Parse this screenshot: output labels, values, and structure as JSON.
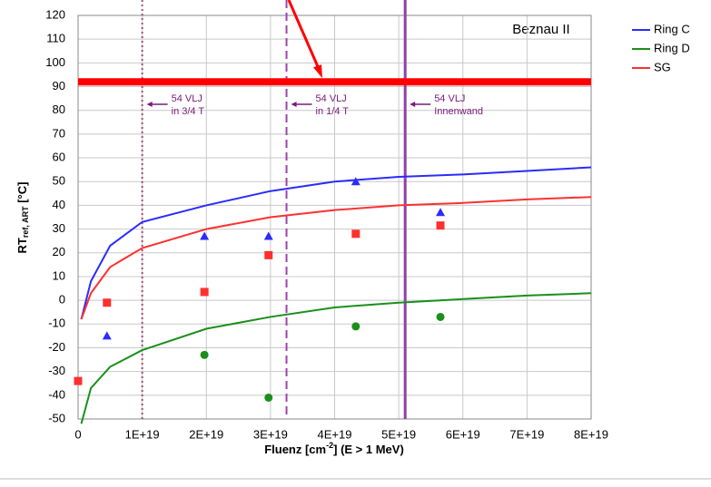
{
  "chart_data": {
    "type": "line",
    "title": "Beznau II",
    "x_label": {
      "main": "Fluenz [cm",
      "sup": "-2",
      "rest": "] (E > 1 MeV)"
    },
    "y_label": {
      "main": "RT",
      "sub": "ref, ART",
      "rest": " [°C]"
    },
    "xlim": [
      0,
      8e+19
    ],
    "ylim": [
      -50,
      120
    ],
    "xticks": [
      0,
      {
        "value": 1e+19,
        "label": "1E+19"
      },
      {
        "value": 2e+19,
        "label": "2E+19"
      },
      {
        "value": 3e+19,
        "label": "3E+19"
      },
      {
        "value": 4e+19,
        "label": "4E+19"
      },
      {
        "value": 5e+19,
        "label": "5E+19"
      },
      {
        "value": 6e+19,
        "label": "6E+19"
      },
      {
        "value": 7e+19,
        "label": "7E+19"
      },
      {
        "value": 8e+19,
        "label": "8E+19"
      }
    ],
    "yticks": [
      120,
      110,
      100,
      90,
      80,
      70,
      60,
      50,
      40,
      30,
      20,
      10,
      0,
      -10,
      -20,
      -30,
      -40,
      -50
    ],
    "grid": true,
    "legend": "right",
    "series": [
      {
        "name": "Ring C",
        "color": "#2b2bff",
        "marker": "triangle",
        "x": [
          5e+17,
          2e+18,
          5e+18,
          1e+19,
          2e+19,
          3e+19,
          4e+19,
          5e+19,
          6e+19,
          7e+19,
          8e+19
        ],
        "values": [
          -8,
          8,
          23,
          33,
          40,
          46,
          50,
          52,
          53,
          54.5,
          56
        ],
        "markers_x": [
          4.5e+18,
          1.97e+19,
          2.97e+19,
          4.33e+19,
          5.65e+19
        ],
        "markers_y": [
          -15,
          27,
          27,
          50,
          37
        ]
      },
      {
        "name": "Ring D",
        "color": "#1a8f1a",
        "marker": "circle",
        "x": [
          5e+17,
          2e+18,
          5e+18,
          1e+19,
          2e+19,
          3e+19,
          4e+19,
          5e+19,
          6e+19,
          7e+19,
          8e+19
        ],
        "values": [
          -52,
          -37,
          -28,
          -21,
          -12,
          -7,
          -3,
          -1,
          0.5,
          2,
          3
        ],
        "markers_x": [
          1.97e+19,
          2.97e+19,
          4.33e+19,
          5.65e+19
        ],
        "markers_y": [
          -23,
          -41,
          -11,
          -7
        ]
      },
      {
        "name": "SG",
        "color": "#ff3030",
        "marker": "square",
        "x": [
          5e+17,
          2e+18,
          5e+18,
          1e+19,
          2e+19,
          3e+19,
          4e+19,
          5e+19,
          6e+19,
          7e+19,
          8e+19
        ],
        "values": [
          -8,
          3,
          14,
          22,
          30,
          35,
          38,
          40,
          41,
          42.5,
          43.5
        ],
        "markers_x": [
          0,
          4.5e+18,
          1.97e+19,
          2.97e+19,
          4.33e+19,
          5.65e+19
        ],
        "markers_y": [
          -34,
          -1,
          3.5,
          19,
          28,
          31.5
        ]
      }
    ],
    "hline": {
      "value": 92,
      "color": "#ff0000"
    },
    "vlines": [
      {
        "value": 1e+19,
        "style": "dotted",
        "color": "#a0507a",
        "text": [
          "54 VLJ",
          "in 3/4 T"
        ]
      },
      {
        "value": 3.25e+19,
        "style": "dashed",
        "color": "#a040b0",
        "text": [
          "54 VLJ",
          "in 1/4 T"
        ]
      },
      {
        "value": 5.1e+19,
        "style": "solid",
        "color": "#9040a8",
        "text": [
          "54 VLJ",
          "Innenwand"
        ]
      }
    ]
  }
}
